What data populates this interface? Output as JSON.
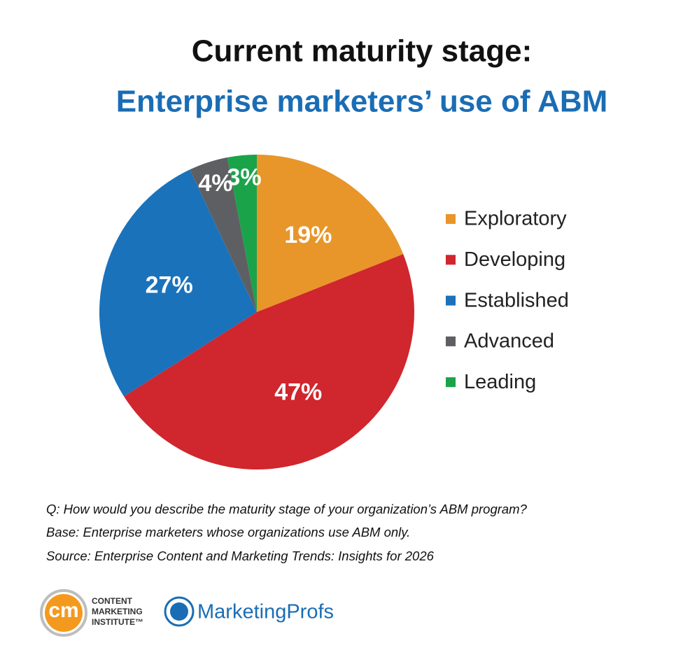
{
  "chart_data": {
    "type": "pie",
    "title": [
      "Current maturity stage:",
      "Enterprise marketers’ use of ABM"
    ],
    "categories": [
      "Exploratory",
      "Developing",
      "Established",
      "Advanced",
      "Leading"
    ],
    "values": [
      19,
      47,
      27,
      4,
      3
    ],
    "value_labels": [
      "19%",
      "47%",
      "27%",
      "4%",
      "3%"
    ],
    "colors": [
      "#e8962a",
      "#d0262d",
      "#1a72bb",
      "#5e5f63",
      "#1ba34a"
    ],
    "legend": "right",
    "notes": [
      "Q: How would you describe the maturity stage of your organization’s ABM program?",
      "Base: Enterprise marketers whose organizations use ABM only.",
      "Source: Enterprise Content and Marketing Trends: Insights for 2026"
    ]
  },
  "logos": {
    "cmi_mark": "cm",
    "cmi_text": [
      "CONTENT",
      "MARKETING",
      "INSTITUTE™"
    ],
    "mp": "MarketingProfs"
  }
}
